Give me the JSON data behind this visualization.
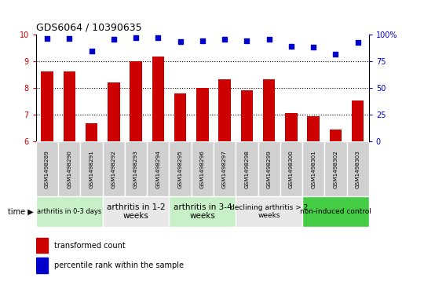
{
  "title": "GDS6064 / 10390635",
  "samples": [
    "GSM1498289",
    "GSM1498290",
    "GSM1498291",
    "GSM1498292",
    "GSM1498293",
    "GSM1498294",
    "GSM1498295",
    "GSM1498296",
    "GSM1498297",
    "GSM1498298",
    "GSM1498299",
    "GSM1498300",
    "GSM1498301",
    "GSM1498302",
    "GSM1498303"
  ],
  "transformed_count": [
    8.62,
    8.62,
    6.68,
    8.2,
    9.0,
    9.15,
    7.78,
    8.0,
    8.32,
    7.9,
    8.32,
    7.05,
    6.92,
    6.42,
    7.52
  ],
  "percentile_rank": [
    96,
    96,
    84,
    95,
    97,
    97,
    93,
    94,
    95,
    94,
    95,
    89,
    88,
    81,
    92
  ],
  "ylim_left": [
    6,
    10
  ],
  "ylim_right": [
    0,
    100
  ],
  "yticks_left": [
    6,
    7,
    8,
    9,
    10
  ],
  "yticks_right": [
    0,
    25,
    50,
    75,
    100
  ],
  "groups": [
    {
      "label": "arthritis in 0-3 days",
      "start": 0,
      "end": 3,
      "color": "#c8f0c8",
      "fontsize": 6.0
    },
    {
      "label": "arthritis in 1-2\nweeks",
      "start": 3,
      "end": 6,
      "color": "#e8e8e8",
      "fontsize": 7.5
    },
    {
      "label": "arthritis in 3-4\nweeks",
      "start": 6,
      "end": 9,
      "color": "#c8f0c8",
      "fontsize": 7.5
    },
    {
      "label": "declining arthritis > 2\nweeks",
      "start": 9,
      "end": 12,
      "color": "#e8e8e8",
      "fontsize": 6.5
    },
    {
      "label": "non-induced control",
      "start": 12,
      "end": 15,
      "color": "#44cc44",
      "fontsize": 6.5
    }
  ],
  "bar_color": "#cc0000",
  "dot_color": "#0000cc",
  "sample_box_color": "#d0d0d0",
  "background_color": "#ffffff",
  "tick_label_color_left": "#cc0000",
  "tick_label_color_right": "#0000cc",
  "legend_red_label": "transformed count",
  "legend_blue_label": "percentile rank within the sample",
  "time_label": "time"
}
